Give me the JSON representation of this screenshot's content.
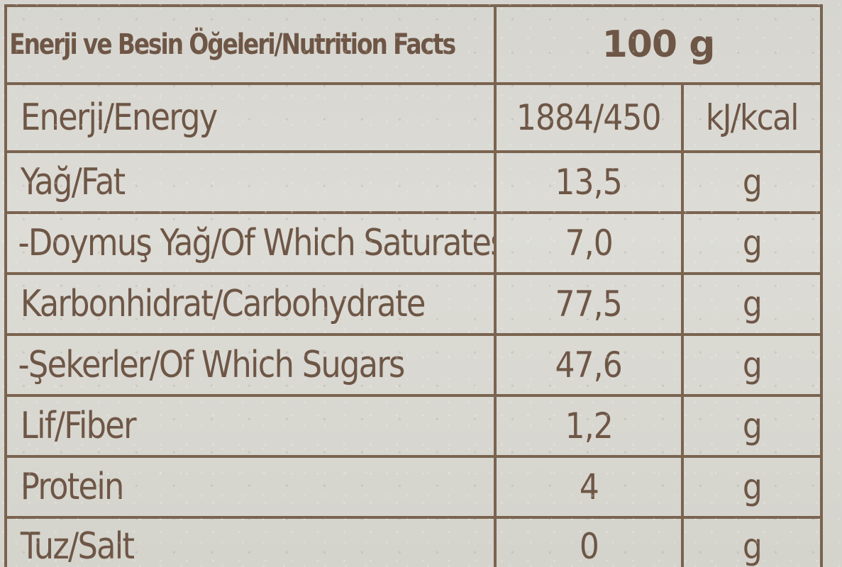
{
  "header": {
    "title": "Enerji ve Besin Öğeleri/Nutrition Facts",
    "amount": "100 g"
  },
  "rows": [
    {
      "name": "Enerji/Energy",
      "value": "1884/450",
      "unit": "kJ/kcal"
    },
    {
      "name": "Yağ/Fat",
      "value": "13,5",
      "unit": "g"
    },
    {
      "name": "-Doymuş Yağ/Of Which Saturates",
      "value": "7,0",
      "unit": "g"
    },
    {
      "name": "Karbonhidrat/Carbohydrate",
      "value": "77,5",
      "unit": "g"
    },
    {
      "name": "-Şekerler/Of Which Sugars",
      "value": "47,6",
      "unit": "g"
    },
    {
      "name": "Lif/Fiber",
      "value": "1,2",
      "unit": "g"
    },
    {
      "name": "Protein",
      "value": "4",
      "unit": "g"
    },
    {
      "name": "Tuz/Salt",
      "value": "0",
      "unit": "g"
    }
  ],
  "colors": {
    "ink": "#6e5646",
    "rule": "#7a6350",
    "paper": "#d9d8d2"
  }
}
